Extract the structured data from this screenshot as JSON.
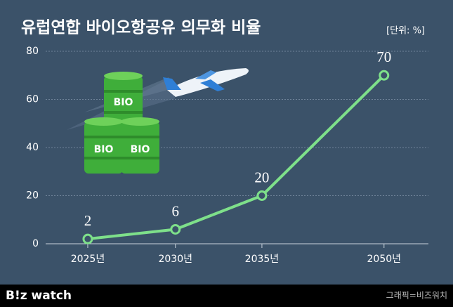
{
  "chart_data": {
    "type": "line",
    "title": "유럽연합 바이오항공유 의무화 비율",
    "unit_label": "[단위: %]",
    "categories": [
      "2025년",
      "2030년",
      "2035년",
      "2050년"
    ],
    "values": [
      2,
      6,
      20,
      70
    ],
    "color": "#7ee08a",
    "ylim": [
      0,
      80
    ],
    "yticks": [
      0,
      20,
      40,
      60,
      80
    ],
    "grid": true
  },
  "illustration": {
    "barrel_label": "BIO"
  },
  "footer": {
    "logo": "B!z watch",
    "credit": "그래픽=비즈워치"
  }
}
